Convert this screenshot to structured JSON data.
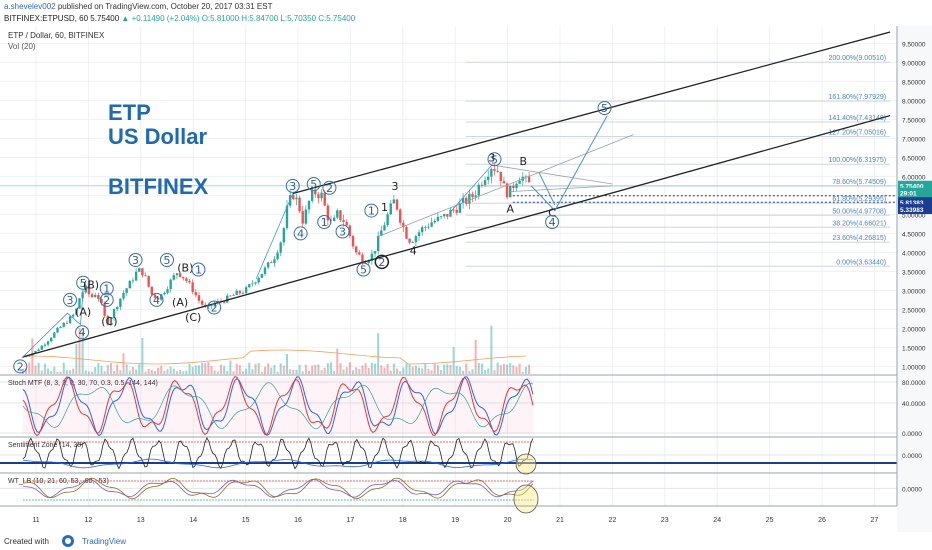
{
  "header": {
    "user": "a.shevelev002",
    "published": " published on TradingView.com, October 20, 2017 03:31 EST",
    "symbol": "BITFINEX:ETPUSD, 60",
    "last": "5.75400",
    "change": "▲ +0.11490 (+2.04%)",
    "ohlc": "O:5.81000 H:5.84700 L:5.70350 C:5.75400"
  },
  "chart_data": {
    "type": "candlestick",
    "title": "ETP / Dollar, 60, BITFINEX",
    "volume_label": "Vol (20)",
    "annotation_text": [
      "ETP",
      "US Dollar",
      "BITFINEX"
    ],
    "y_axis_ticks": [
      1.0,
      1.5,
      2.0,
      2.5,
      3.0,
      3.5,
      4.0,
      4.5,
      5.0,
      5.5,
      6.0,
      6.5,
      7.0,
      7.5,
      8.0,
      8.5,
      9.0,
      9.5
    ],
    "y_axis_labels": [
      "1.00000",
      "1.50000",
      "2.00000",
      "2.50000",
      "3.00000",
      "3.50000",
      "4.00000",
      "4.50000",
      "5.00000",
      "5.50000",
      "6.00000",
      "6.50000",
      "7.00000",
      "7.50000",
      "8.00000",
      "8.50000",
      "9.00000",
      "9.50000"
    ],
    "ylim": [
      0.8,
      9.8
    ],
    "x_axis_ticks": [
      "11",
      "12",
      "13",
      "14",
      "15",
      "16",
      "17",
      "18",
      "19",
      "20",
      "21",
      "22",
      "23",
      "24",
      "25",
      "26",
      "27"
    ],
    "price_tags": [
      {
        "label": "5.75400",
        "value": 5.754,
        "color": "#26a69a"
      },
      {
        "label": "29:01",
        "value": 5.57,
        "color": "#26a69a"
      },
      {
        "label": "5.81383",
        "value": 5.32,
        "color": "#1a3d8f"
      },
      {
        "label": "5.33983",
        "value": 5.14,
        "color": "#1a3d8f"
      }
    ],
    "price_path": [
      [
        10.75,
        1.25
      ],
      [
        11.0,
        1.4
      ],
      [
        11.2,
        1.65
      ],
      [
        11.4,
        1.95
      ],
      [
        11.6,
        2.2
      ],
      [
        11.75,
        2.4
      ],
      [
        11.85,
        2.9
      ],
      [
        11.95,
        3.05
      ],
      [
        12.05,
        2.8
      ],
      [
        12.15,
        2.95
      ],
      [
        12.25,
        2.6
      ],
      [
        12.35,
        2.1
      ],
      [
        12.5,
        2.5
      ],
      [
        12.65,
        2.9
      ],
      [
        12.8,
        3.2
      ],
      [
        12.9,
        3.45
      ],
      [
        13.0,
        3.55
      ],
      [
        13.1,
        3.3
      ],
      [
        13.2,
        2.9
      ],
      [
        13.35,
        2.8
      ],
      [
        13.5,
        3.1
      ],
      [
        13.7,
        3.5
      ],
      [
        13.85,
        3.3
      ],
      [
        14.0,
        3.0
      ],
      [
        14.1,
        2.75
      ],
      [
        14.25,
        2.5
      ],
      [
        14.4,
        2.65
      ],
      [
        14.6,
        2.75
      ],
      [
        14.8,
        2.9
      ],
      [
        15.0,
        3.0
      ],
      [
        15.2,
        3.3
      ],
      [
        15.4,
        3.6
      ],
      [
        15.55,
        3.9
      ],
      [
        15.7,
        4.4
      ],
      [
        15.8,
        5.2
      ],
      [
        15.9,
        5.55
      ],
      [
        16.0,
        5.3
      ],
      [
        16.1,
        4.8
      ],
      [
        16.2,
        5.3
      ],
      [
        16.3,
        5.6
      ],
      [
        16.45,
        5.5
      ],
      [
        16.55,
        5.0
      ],
      [
        16.65,
        4.7
      ],
      [
        16.75,
        5.0
      ],
      [
        16.9,
        4.8
      ],
      [
        17.0,
        4.4
      ],
      [
        17.1,
        4.0
      ],
      [
        17.25,
        3.8
      ],
      [
        17.4,
        3.9
      ],
      [
        17.5,
        4.2
      ],
      [
        17.6,
        4.6
      ],
      [
        17.75,
        5.1
      ],
      [
        17.85,
        5.4
      ],
      [
        17.95,
        4.9
      ],
      [
        18.05,
        4.5
      ],
      [
        18.15,
        4.3
      ],
      [
        18.35,
        4.6
      ],
      [
        18.55,
        4.8
      ],
      [
        18.75,
        4.9
      ],
      [
        18.95,
        5.1
      ],
      [
        19.15,
        5.3
      ],
      [
        19.35,
        5.5
      ],
      [
        19.55,
        6.0
      ],
      [
        19.7,
        6.3
      ],
      [
        19.85,
        6.1
      ],
      [
        19.95,
        5.6
      ],
      [
        20.05,
        5.6
      ],
      [
        20.15,
        5.9
      ],
      [
        20.25,
        6.05
      ],
      [
        20.35,
        5.85
      ],
      [
        20.45,
        5.75
      ]
    ],
    "projection_path": [
      [
        20.45,
        5.75
      ],
      [
        20.9,
        5.1
      ],
      [
        21.9,
        7.6
      ]
    ],
    "subprojection": [
      [
        20.6,
        6.1
      ],
      [
        20.9,
        5.25
      ]
    ],
    "channel_upper": [
      [
        15.9,
        5.55
      ],
      [
        27.3,
        9.8
      ]
    ],
    "channel_lower": [
      [
        10.75,
        1.25
      ],
      [
        27.3,
        7.6
      ]
    ],
    "thin_channel": [
      [
        17.5,
        4.4
      ],
      [
        22.4,
        7.1
      ]
    ],
    "fib_levels": [
      {
        "label": "0.00%(3.63440)",
        "value": 3.6344
      },
      {
        "label": "23.60%(4.26815)",
        "value": 4.26815
      },
      {
        "label": "38.20%(4.66021)",
        "value": 4.66021
      },
      {
        "label": "50.00%(4.97708)",
        "value": 4.97708
      },
      {
        "label": "61.80%(5.29395)",
        "value": 5.29395
      },
      {
        "label": "78.60%(5.74509)",
        "value": 5.74509
      },
      {
        "label": "100.00%(6.31975)",
        "value": 6.31975
      },
      {
        "label": "127.20%(7.05016)",
        "value": 7.05016
      },
      {
        "label": "141.40%(7.43148)",
        "value": 7.43148
      },
      {
        "label": "161.80%(7.97929)",
        "value": 7.97929
      },
      {
        "label": "200.00%(9.00510)",
        "value": 9.0051
      }
    ],
    "wave_labels": [
      {
        "t": "3",
        "x": 11.65,
        "y": 2.75,
        "c": 1
      },
      {
        "t": "4",
        "x": 11.88,
        "y": 1.9,
        "c": 1
      },
      {
        "t": "5",
        "x": 11.9,
        "y": 3.2,
        "c": 1
      },
      {
        "t": "(B)",
        "x": 12.05,
        "y": 3.15,
        "c": 0
      },
      {
        "t": "1",
        "x": 12.35,
        "y": 3.05,
        "c": 1
      },
      {
        "t": "2",
        "x": 12.35,
        "y": 2.75,
        "c": 1
      },
      {
        "t": "(A)",
        "x": 11.9,
        "y": 2.45,
        "c": 0
      },
      {
        "t": "(C)",
        "x": 12.4,
        "y": 2.2,
        "c": 0
      },
      {
        "t": "3",
        "x": 12.9,
        "y": 3.8,
        "c": 1
      },
      {
        "t": "5",
        "x": 13.5,
        "y": 3.8,
        "c": 1
      },
      {
        "t": "(B)",
        "x": 13.85,
        "y": 3.6,
        "c": 0
      },
      {
        "t": "1",
        "x": 14.1,
        "y": 3.55,
        "c": 1
      },
      {
        "t": "4",
        "x": 13.3,
        "y": 2.75,
        "c": 1
      },
      {
        "t": "(A)",
        "x": 13.75,
        "y": 2.7,
        "c": 0
      },
      {
        "t": "(C)",
        "x": 14.0,
        "y": 2.3,
        "c": 0
      },
      {
        "t": "2",
        "x": 14.4,
        "y": 2.55,
        "c": 1
      },
      {
        "t": "3",
        "x": 15.9,
        "y": 5.75,
        "c": 1
      },
      {
        "t": "5",
        "x": 16.3,
        "y": 5.8,
        "c": 1
      },
      {
        "t": "2",
        "x": 16.6,
        "y": 5.7,
        "c": 1
      },
      {
        "t": "4",
        "x": 16.05,
        "y": 4.5,
        "c": 1
      },
      {
        "t": "1",
        "x": 16.5,
        "y": 4.8,
        "c": 1
      },
      {
        "t": "3",
        "x": 16.85,
        "y": 4.55,
        "c": 1
      },
      {
        "t": "5",
        "x": 17.25,
        "y": 3.55,
        "c": 1
      },
      {
        "t": "1",
        "x": 17.4,
        "y": 5.1,
        "c": 1
      },
      {
        "t": "1",
        "x": 17.65,
        "y": 5.2,
        "c": 0
      },
      {
        "t": "2",
        "x": 17.6,
        "y": 3.75,
        "c": 2
      },
      {
        "t": "3",
        "x": 17.85,
        "y": 5.75,
        "c": 0
      },
      {
        "t": "4",
        "x": 18.2,
        "y": 4.05,
        "c": 0
      },
      {
        "t": "5",
        "x": 19.75,
        "y": 6.45,
        "c": 1
      },
      {
        "t": "3",
        "x": 19.7,
        "y": 6.5,
        "c": 0
      },
      {
        "t": "B",
        "x": 20.3,
        "y": 6.4,
        "c": 0
      },
      {
        "t": "A",
        "x": 20.05,
        "y": 5.15,
        "c": 0
      },
      {
        "t": "C",
        "x": 20.85,
        "y": 5.05,
        "c": 0
      },
      {
        "t": "4",
        "x": 20.85,
        "y": 4.8,
        "c": 1
      },
      {
        "t": "5",
        "x": 21.85,
        "y": 7.8,
        "c": 1
      },
      {
        "t": "2",
        "x": 10.7,
        "y": 1.0,
        "c": 1
      }
    ],
    "indicators": [
      {
        "name": "stoch",
        "label": "Stoch MTF (8, 3, 3, 0, 30, 70, 0.3, 0.5, 144, 144)",
        "ticks": [
          "80.0000",
          "40.0000",
          "0.0000"
        ]
      },
      {
        "name": "sentiment",
        "label": "Sentiment Zone (14, 30)",
        "ticks": [
          "0.0000"
        ]
      },
      {
        "name": "wt",
        "label": "WT_LB (10, 21, 60, 53, -60, -53)",
        "ticks": [
          "0.0000"
        ]
      }
    ]
  },
  "footer": {
    "created": "Created with",
    "brand": "TradingView"
  }
}
